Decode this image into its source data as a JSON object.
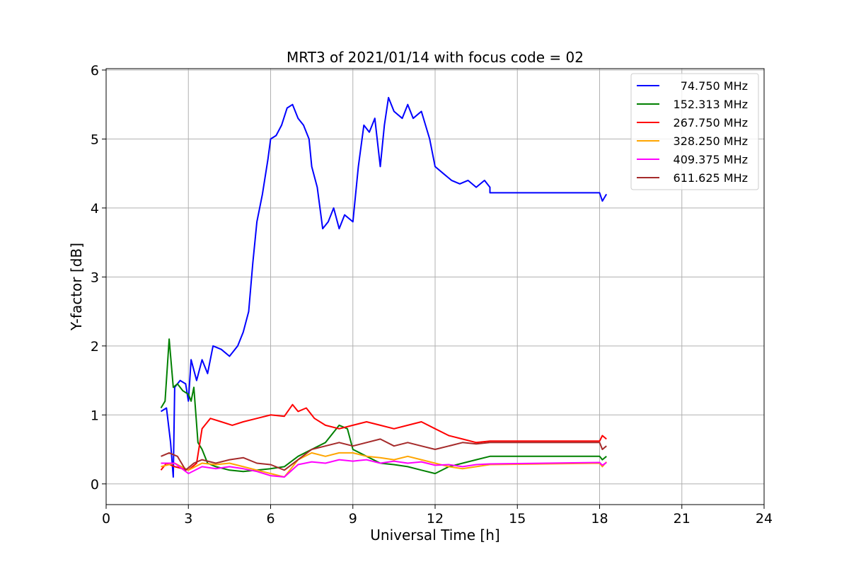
{
  "chart_data": {
    "type": "line",
    "title": "MRT3 of 2021/01/14 with focus code = 02",
    "xlabel": "Universal Time [h]",
    "ylabel": "Y-factor [dB]",
    "xlim": [
      0,
      24
    ],
    "ylim": [
      -0.3,
      6.02
    ],
    "xticks": [
      0,
      3,
      6,
      9,
      12,
      15,
      18,
      21,
      24
    ],
    "yticks": [
      0,
      1,
      2,
      3,
      4,
      5,
      6
    ],
    "grid": true,
    "legend_position": "top-right",
    "series": [
      {
        "name": "74.750 MHz",
        "color": "#0000ff",
        "points": [
          [
            2.0,
            1.05
          ],
          [
            2.2,
            1.1
          ],
          [
            2.35,
            0.6
          ],
          [
            2.45,
            0.1
          ],
          [
            2.5,
            1.4
          ],
          [
            2.7,
            1.5
          ],
          [
            2.9,
            1.45
          ],
          [
            3.0,
            1.2
          ],
          [
            3.1,
            1.8
          ],
          [
            3.3,
            1.5
          ],
          [
            3.5,
            1.8
          ],
          [
            3.7,
            1.6
          ],
          [
            3.9,
            2.0
          ],
          [
            4.2,
            1.95
          ],
          [
            4.5,
            1.85
          ],
          [
            4.8,
            2.0
          ],
          [
            5.0,
            2.2
          ],
          [
            5.2,
            2.5
          ],
          [
            5.35,
            3.2
          ],
          [
            5.5,
            3.8
          ],
          [
            5.7,
            4.2
          ],
          [
            5.9,
            4.7
          ],
          [
            6.0,
            5.0
          ],
          [
            6.2,
            5.05
          ],
          [
            6.4,
            5.2
          ],
          [
            6.6,
            5.45
          ],
          [
            6.8,
            5.5
          ],
          [
            7.0,
            5.3
          ],
          [
            7.2,
            5.2
          ],
          [
            7.4,
            5.0
          ],
          [
            7.5,
            4.6
          ],
          [
            7.7,
            4.3
          ],
          [
            7.9,
            3.7
          ],
          [
            8.1,
            3.8
          ],
          [
            8.3,
            4.0
          ],
          [
            8.5,
            3.7
          ],
          [
            8.7,
            3.9
          ],
          [
            9.0,
            3.8
          ],
          [
            9.2,
            4.6
          ],
          [
            9.4,
            5.2
          ],
          [
            9.6,
            5.1
          ],
          [
            9.8,
            5.3
          ],
          [
            10.0,
            4.6
          ],
          [
            10.15,
            5.2
          ],
          [
            10.3,
            5.6
          ],
          [
            10.5,
            5.4
          ],
          [
            10.8,
            5.3
          ],
          [
            11.0,
            5.5
          ],
          [
            11.2,
            5.3
          ],
          [
            11.5,
            5.4
          ],
          [
            11.8,
            5.0
          ],
          [
            12.0,
            4.6
          ],
          [
            12.3,
            4.5
          ],
          [
            12.6,
            4.4
          ],
          [
            12.9,
            4.35
          ],
          [
            13.2,
            4.4
          ],
          [
            13.5,
            4.3
          ],
          [
            13.8,
            4.4
          ],
          [
            14.0,
            4.3
          ],
          [
            14.0,
            4.22
          ],
          [
            18.0,
            4.22
          ],
          [
            18.1,
            4.1
          ],
          [
            18.25,
            4.2
          ]
        ]
      },
      {
        "name": "152.313 MHz",
        "color": "#008000",
        "points": [
          [
            2.0,
            1.1
          ],
          [
            2.15,
            1.2
          ],
          [
            2.3,
            2.1
          ],
          [
            2.45,
            1.4
          ],
          [
            2.6,
            1.45
          ],
          [
            2.8,
            1.35
          ],
          [
            3.0,
            1.3
          ],
          [
            3.1,
            1.2
          ],
          [
            3.2,
            1.4
          ],
          [
            3.35,
            0.6
          ],
          [
            3.5,
            0.5
          ],
          [
            3.7,
            0.3
          ],
          [
            4.0,
            0.25
          ],
          [
            4.5,
            0.2
          ],
          [
            5.0,
            0.18
          ],
          [
            5.5,
            0.2
          ],
          [
            6.0,
            0.22
          ],
          [
            6.5,
            0.25
          ],
          [
            7.0,
            0.4
          ],
          [
            7.5,
            0.5
          ],
          [
            8.0,
            0.6
          ],
          [
            8.5,
            0.85
          ],
          [
            8.8,
            0.8
          ],
          [
            9.0,
            0.5
          ],
          [
            9.5,
            0.4
          ],
          [
            10.0,
            0.3
          ],
          [
            10.5,
            0.28
          ],
          [
            11.0,
            0.25
          ],
          [
            11.5,
            0.2
          ],
          [
            12.0,
            0.15
          ],
          [
            12.5,
            0.25
          ],
          [
            13.0,
            0.3
          ],
          [
            13.5,
            0.35
          ],
          [
            14.0,
            0.4
          ],
          [
            18.0,
            0.4
          ],
          [
            18.1,
            0.35
          ],
          [
            18.25,
            0.4
          ]
        ]
      },
      {
        "name": "267.750 MHz",
        "color": "#ff0000",
        "points": [
          [
            2.0,
            0.2
          ],
          [
            2.2,
            0.3
          ],
          [
            2.5,
            0.25
          ],
          [
            3.0,
            0.2
          ],
          [
            3.3,
            0.3
          ],
          [
            3.5,
            0.8
          ],
          [
            3.8,
            0.95
          ],
          [
            4.2,
            0.9
          ],
          [
            4.6,
            0.85
          ],
          [
            5.0,
            0.9
          ],
          [
            5.5,
            0.95
          ],
          [
            6.0,
            1.0
          ],
          [
            6.5,
            0.98
          ],
          [
            6.8,
            1.15
          ],
          [
            7.0,
            1.05
          ],
          [
            7.3,
            1.1
          ],
          [
            7.6,
            0.95
          ],
          [
            8.0,
            0.85
          ],
          [
            8.5,
            0.8
          ],
          [
            9.0,
            0.85
          ],
          [
            9.5,
            0.9
          ],
          [
            10.0,
            0.85
          ],
          [
            10.5,
            0.8
          ],
          [
            11.0,
            0.85
          ],
          [
            11.5,
            0.9
          ],
          [
            12.0,
            0.8
          ],
          [
            12.5,
            0.7
          ],
          [
            13.0,
            0.65
          ],
          [
            13.5,
            0.6
          ],
          [
            14.0,
            0.62
          ],
          [
            18.0,
            0.62
          ],
          [
            18.1,
            0.7
          ],
          [
            18.25,
            0.65
          ]
        ]
      },
      {
        "name": "328.250 MHz",
        "color": "#ffa500",
        "points": [
          [
            2.0,
            0.25
          ],
          [
            2.5,
            0.3
          ],
          [
            3.0,
            0.2
          ],
          [
            3.5,
            0.3
          ],
          [
            4.0,
            0.28
          ],
          [
            4.5,
            0.3
          ],
          [
            5.0,
            0.25
          ],
          [
            5.5,
            0.2
          ],
          [
            6.0,
            0.15
          ],
          [
            6.5,
            0.1
          ],
          [
            7.0,
            0.35
          ],
          [
            7.5,
            0.45
          ],
          [
            8.0,
            0.4
          ],
          [
            8.5,
            0.45
          ],
          [
            9.0,
            0.45
          ],
          [
            9.5,
            0.4
          ],
          [
            10.0,
            0.38
          ],
          [
            10.5,
            0.35
          ],
          [
            11.0,
            0.4
          ],
          [
            11.5,
            0.35
          ],
          [
            12.0,
            0.3
          ],
          [
            12.5,
            0.25
          ],
          [
            13.0,
            0.22
          ],
          [
            13.5,
            0.25
          ],
          [
            14.0,
            0.28
          ],
          [
            18.0,
            0.3
          ],
          [
            18.1,
            0.25
          ],
          [
            18.25,
            0.32
          ]
        ]
      },
      {
        "name": "409.375 MHz",
        "color": "#ff00ff",
        "points": [
          [
            2.0,
            0.3
          ],
          [
            2.5,
            0.3
          ],
          [
            3.0,
            0.15
          ],
          [
            3.5,
            0.25
          ],
          [
            4.0,
            0.22
          ],
          [
            4.5,
            0.25
          ],
          [
            5.0,
            0.22
          ],
          [
            5.5,
            0.18
          ],
          [
            6.0,
            0.12
          ],
          [
            6.5,
            0.1
          ],
          [
            7.0,
            0.28
          ],
          [
            7.5,
            0.32
          ],
          [
            8.0,
            0.3
          ],
          [
            8.5,
            0.35
          ],
          [
            9.0,
            0.33
          ],
          [
            9.5,
            0.35
          ],
          [
            10.0,
            0.3
          ],
          [
            10.5,
            0.33
          ],
          [
            11.0,
            0.3
          ],
          [
            11.5,
            0.32
          ],
          [
            12.0,
            0.27
          ],
          [
            12.5,
            0.28
          ],
          [
            13.0,
            0.25
          ],
          [
            13.5,
            0.28
          ],
          [
            14.0,
            0.29
          ],
          [
            18.0,
            0.31
          ],
          [
            18.1,
            0.27
          ],
          [
            18.25,
            0.31
          ]
        ]
      },
      {
        "name": "611.625 MHz",
        "color": "#a52a2a",
        "points": [
          [
            2.0,
            0.4
          ],
          [
            2.3,
            0.45
          ],
          [
            2.6,
            0.4
          ],
          [
            2.9,
            0.2
          ],
          [
            3.2,
            0.3
          ],
          [
            3.5,
            0.35
          ],
          [
            4.0,
            0.3
          ],
          [
            4.5,
            0.35
          ],
          [
            5.0,
            0.38
          ],
          [
            5.5,
            0.3
          ],
          [
            6.0,
            0.28
          ],
          [
            6.5,
            0.2
          ],
          [
            7.0,
            0.35
          ],
          [
            7.5,
            0.5
          ],
          [
            8.0,
            0.55
          ],
          [
            8.5,
            0.6
          ],
          [
            9.0,
            0.55
          ],
          [
            9.5,
            0.6
          ],
          [
            10.0,
            0.65
          ],
          [
            10.5,
            0.55
          ],
          [
            11.0,
            0.6
          ],
          [
            11.5,
            0.55
          ],
          [
            12.0,
            0.5
          ],
          [
            12.5,
            0.55
          ],
          [
            13.0,
            0.6
          ],
          [
            13.5,
            0.58
          ],
          [
            14.0,
            0.6
          ],
          [
            18.0,
            0.6
          ],
          [
            18.1,
            0.5
          ],
          [
            18.25,
            0.55
          ]
        ]
      }
    ]
  }
}
